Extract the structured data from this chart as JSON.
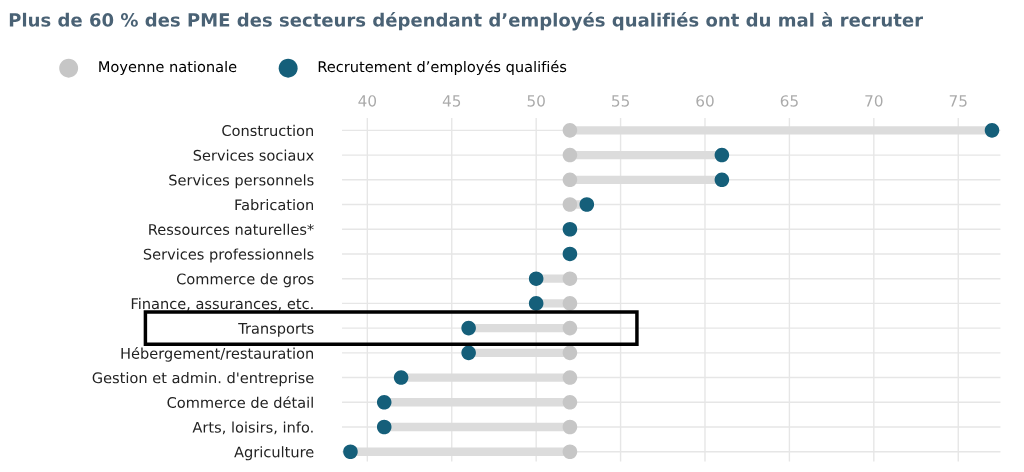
{
  "chart_data": {
    "type": "scatter",
    "orientation": "horizontal",
    "title": "Plus de 60 % des PME des secteurs dépendant d’employés qualifiés ont du mal à recruter",
    "categories": [
      "Construction",
      "Services sociaux",
      "Services personnels",
      "Fabrication",
      "Ressources naturelles*",
      "Services professionnels",
      "Commerce de gros",
      "Finance, assurances, etc.",
      "Transports",
      "Hébergement/restauration",
      "Gestion et admin. d'entreprise",
      "Commerce de détail",
      "Arts, loisirs, info.",
      "Agriculture"
    ],
    "series": [
      {
        "name": "Moyenne nationale",
        "color": "#c6c6c6",
        "values": [
          52,
          52,
          52,
          52,
          null,
          null,
          52,
          52,
          52,
          52,
          52,
          52,
          52,
          52
        ]
      },
      {
        "name": "Recrutement d’employés qualifiés",
        "color": "#155f7a",
        "values": [
          77,
          61,
          61,
          53,
          52,
          52,
          50,
          50,
          46,
          46,
          42,
          41,
          41,
          39
        ]
      }
    ],
    "xlim": [
      38.5,
      77.5
    ],
    "xticks": [
      40,
      45,
      50,
      55,
      60,
      65,
      70,
      75
    ],
    "grid": true,
    "legend": "top left",
    "marker": "circle"
  }
}
